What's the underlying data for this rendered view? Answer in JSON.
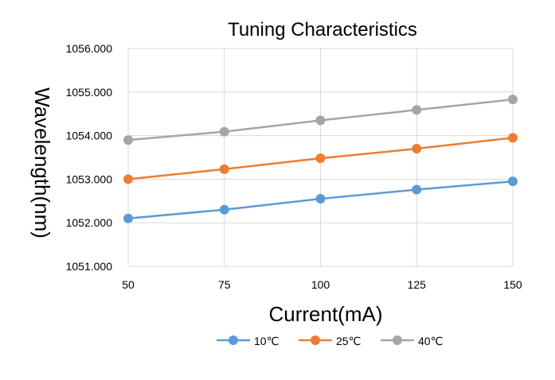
{
  "chart_data": {
    "type": "line",
    "title": "Tuning Characteristics",
    "xlabel": "Current(mA)",
    "ylabel": "Wavelength(nm)",
    "x": [
      50,
      75,
      100,
      125,
      150
    ],
    "x_tick_labels": [
      "50",
      "75",
      "100",
      "125",
      "150"
    ],
    "ylim": [
      1051,
      1056
    ],
    "y_tick_labels": [
      "1051.000",
      "1052.000",
      "1053.000",
      "1054.000",
      "1055.000",
      "1056.000"
    ],
    "grid": true,
    "legend_position": "bottom",
    "series": [
      {
        "name": "10℃",
        "color": "#5b9bd5",
        "values": [
          1052.1,
          1052.3,
          1052.55,
          1052.76,
          1052.95
        ]
      },
      {
        "name": "25℃",
        "color": "#ed7d31",
        "values": [
          1053.0,
          1053.23,
          1053.48,
          1053.7,
          1053.95
        ]
      },
      {
        "name": "40℃",
        "color": "#a5a5a5",
        "values": [
          1053.9,
          1054.09,
          1054.35,
          1054.59,
          1054.83
        ]
      }
    ]
  }
}
